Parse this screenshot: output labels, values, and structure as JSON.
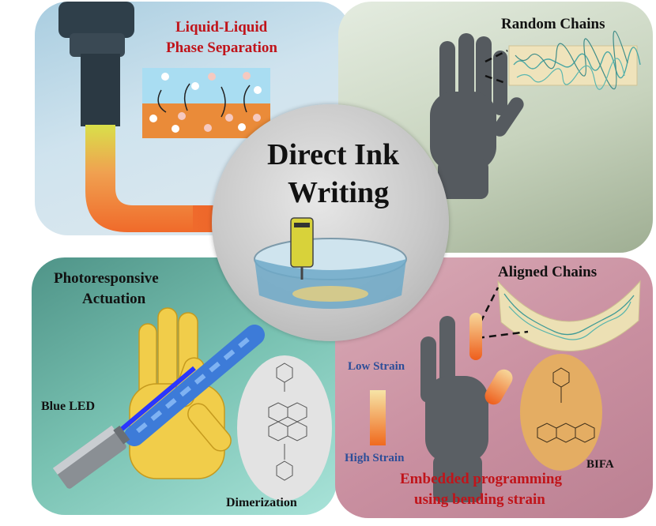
{
  "center": {
    "title_line1": "Direct Ink",
    "title_line2": "Writing"
  },
  "top_left": {
    "title_line1": "Liquid-Liquid",
    "title_line2": "Phase Separation"
  },
  "top_right": {
    "label": "Random Chains"
  },
  "bottom_left": {
    "title_line1": "Photoresponsive",
    "title_line2": "Actuation",
    "led_label": "Blue LED",
    "reaction_label": "Dimerization"
  },
  "bottom_right": {
    "label": "Aligned Chains",
    "low_strain": "Low Strain",
    "high_strain": "High Strain",
    "molecule_label": "BIFA",
    "caption_line1": "Embedded programming",
    "caption_line2": "using bending strain"
  },
  "colors": {
    "title_red": "#c0141a",
    "strain_blue": "#2d4e98",
    "led_blue": "#2a36ff"
  }
}
